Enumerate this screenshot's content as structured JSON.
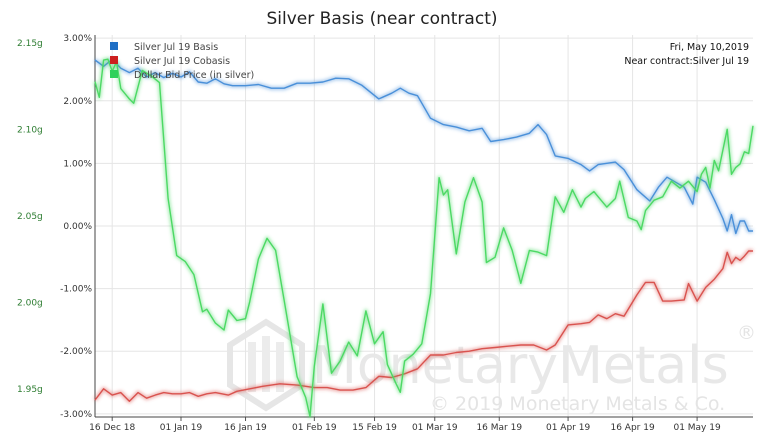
{
  "chart_data": {
    "type": "line",
    "title": "Silver Basis (near contract)",
    "x_ticks": [
      "16 Dec 18",
      "01 Jan 19",
      "16 Jan 19",
      "01 Feb 19",
      "15 Feb 19",
      "01 Mar 19",
      "16 Mar 19",
      "01 Apr 19",
      "16 Apr 19",
      "01 May 19"
    ],
    "x_range": [
      "2018-12-12",
      "2019-05-14"
    ],
    "y_right": {
      "ticks": [
        "3.00%",
        "2.00%",
        "1.00%",
        "0.00%",
        "-1.00%",
        "-2.00%",
        "-3.00%"
      ],
      "range": [
        -3.05,
        3.05
      ]
    },
    "y_left": {
      "ticks": [
        "2.15g",
        "2.10g",
        "2.05g",
        "2.00g",
        "1.95g"
      ],
      "range": [
        1.9337,
        2.1545
      ],
      "color": "#2e7d32"
    },
    "grid": true,
    "legend_position": "top-left",
    "info_lines": [
      "Fri, May 10,2019",
      "Near contract:Silver Jul 19"
    ],
    "watermark": {
      "logo_text": "MonetaryMetals",
      "registered_mark": "®",
      "copyright": "© 2019 Monetary Metals & Co."
    },
    "series": [
      {
        "name": "Silver Jul 19 Basis",
        "color": "#4a90d9",
        "axis": "right",
        "points": [
          [
            "2018-12-12",
            2.65
          ],
          [
            "2018-12-14",
            2.55
          ],
          [
            "2018-12-16",
            2.66
          ],
          [
            "2018-12-18",
            2.52
          ],
          [
            "2018-12-20",
            2.45
          ],
          [
            "2018-12-22",
            2.52
          ],
          [
            "2018-12-24",
            2.38
          ],
          [
            "2018-12-26",
            2.45
          ],
          [
            "2018-12-28",
            2.37
          ],
          [
            "2018-12-30",
            2.44
          ],
          [
            "2019-01-01",
            2.38
          ],
          [
            "2019-01-03",
            2.46
          ],
          [
            "2019-01-05",
            2.3
          ],
          [
            "2019-01-07",
            2.28
          ],
          [
            "2019-01-09",
            2.35
          ],
          [
            "2019-01-11",
            2.27
          ],
          [
            "2019-01-13",
            2.24
          ],
          [
            "2019-01-16",
            2.24
          ],
          [
            "2019-01-19",
            2.26
          ],
          [
            "2019-01-22",
            2.2
          ],
          [
            "2019-01-25",
            2.2
          ],
          [
            "2019-01-28",
            2.28
          ],
          [
            "2019-01-31",
            2.28
          ],
          [
            "2019-02-03",
            2.3
          ],
          [
            "2019-02-06",
            2.36
          ],
          [
            "2019-02-09",
            2.35
          ],
          [
            "2019-02-12",
            2.25
          ],
          [
            "2019-02-16",
            2.03
          ],
          [
            "2019-02-19",
            2.12
          ],
          [
            "2019-02-21",
            2.2
          ],
          [
            "2019-02-23",
            2.12
          ],
          [
            "2019-02-25",
            2.08
          ],
          [
            "2019-02-28",
            1.72
          ],
          [
            "2019-03-03",
            1.62
          ],
          [
            "2019-03-06",
            1.58
          ],
          [
            "2019-03-09",
            1.52
          ],
          [
            "2019-03-12",
            1.56
          ],
          [
            "2019-03-14",
            1.35
          ],
          [
            "2019-03-17",
            1.38
          ],
          [
            "2019-03-20",
            1.42
          ],
          [
            "2019-03-23",
            1.48
          ],
          [
            "2019-03-25",
            1.62
          ],
          [
            "2019-03-27",
            1.46
          ],
          [
            "2019-03-29",
            1.12
          ],
          [
            "2019-04-01",
            1.08
          ],
          [
            "2019-04-04",
            0.98
          ],
          [
            "2019-04-06",
            0.88
          ],
          [
            "2019-04-08",
            0.98
          ],
          [
            "2019-04-12",
            1.02
          ],
          [
            "2019-04-14",
            0.9
          ],
          [
            "2019-04-17",
            0.58
          ],
          [
            "2019-04-20",
            0.4
          ],
          [
            "2019-04-22",
            0.62
          ],
          [
            "2019-04-24",
            0.78
          ],
          [
            "2019-04-26",
            0.7
          ],
          [
            "2019-04-28",
            0.62
          ],
          [
            "2019-04-30",
            0.35
          ],
          [
            "2019-05-01",
            0.78
          ],
          [
            "2019-05-03",
            0.7
          ],
          [
            "2019-05-05",
            0.42
          ],
          [
            "2019-05-07",
            0.12
          ],
          [
            "2019-05-08",
            -0.08
          ],
          [
            "2019-05-09",
            0.18
          ],
          [
            "2019-05-10",
            -0.12
          ],
          [
            "2019-05-11",
            0.08
          ],
          [
            "2019-05-12",
            0.08
          ],
          [
            "2019-05-13",
            -0.08
          ],
          [
            "2019-05-14",
            -0.08
          ]
        ]
      },
      {
        "name": "Silver Jul 19 Cobasis",
        "color": "#d9534f",
        "axis": "right",
        "points": [
          [
            "2018-12-12",
            -2.78
          ],
          [
            "2018-12-14",
            -2.6
          ],
          [
            "2018-12-16",
            -2.7
          ],
          [
            "2018-12-18",
            -2.66
          ],
          [
            "2018-12-20",
            -2.8
          ],
          [
            "2018-12-22",
            -2.66
          ],
          [
            "2018-12-24",
            -2.75
          ],
          [
            "2018-12-26",
            -2.7
          ],
          [
            "2018-12-28",
            -2.66
          ],
          [
            "2018-12-30",
            -2.68
          ],
          [
            "2019-01-01",
            -2.68
          ],
          [
            "2019-01-03",
            -2.66
          ],
          [
            "2019-01-05",
            -2.72
          ],
          [
            "2019-01-07",
            -2.68
          ],
          [
            "2019-01-09",
            -2.66
          ],
          [
            "2019-01-12",
            -2.7
          ],
          [
            "2019-01-14",
            -2.64
          ],
          [
            "2019-01-17",
            -2.6
          ],
          [
            "2019-01-20",
            -2.56
          ],
          [
            "2019-01-24",
            -2.52
          ],
          [
            "2019-01-28",
            -2.54
          ],
          [
            "2019-02-01",
            -2.58
          ],
          [
            "2019-02-04",
            -2.58
          ],
          [
            "2019-02-07",
            -2.62
          ],
          [
            "2019-02-10",
            -2.62
          ],
          [
            "2019-02-13",
            -2.58
          ],
          [
            "2019-02-16",
            -2.4
          ],
          [
            "2019-02-19",
            -2.42
          ],
          [
            "2019-02-22",
            -2.36
          ],
          [
            "2019-02-25",
            -2.28
          ],
          [
            "2019-02-28",
            -2.06
          ],
          [
            "2019-03-03",
            -2.06
          ],
          [
            "2019-03-06",
            -2.02
          ],
          [
            "2019-03-09",
            -2.0
          ],
          [
            "2019-03-12",
            -1.96
          ],
          [
            "2019-03-15",
            -1.94
          ],
          [
            "2019-03-18",
            -1.92
          ],
          [
            "2019-03-21",
            -1.9
          ],
          [
            "2019-03-24",
            -1.9
          ],
          [
            "2019-03-27",
            -1.98
          ],
          [
            "2019-03-29",
            -1.9
          ],
          [
            "2019-04-01",
            -1.58
          ],
          [
            "2019-04-04",
            -1.56
          ],
          [
            "2019-04-06",
            -1.54
          ],
          [
            "2019-04-08",
            -1.42
          ],
          [
            "2019-04-10",
            -1.48
          ],
          [
            "2019-04-12",
            -1.4
          ],
          [
            "2019-04-14",
            -1.44
          ],
          [
            "2019-04-17",
            -1.1
          ],
          [
            "2019-04-19",
            -0.9
          ],
          [
            "2019-04-21",
            -0.9
          ],
          [
            "2019-04-23",
            -1.2
          ],
          [
            "2019-04-25",
            -1.2
          ],
          [
            "2019-04-28",
            -1.18
          ],
          [
            "2019-04-29",
            -0.92
          ],
          [
            "2019-05-01",
            -1.2
          ],
          [
            "2019-05-03",
            -0.98
          ],
          [
            "2019-05-05",
            -0.85
          ],
          [
            "2019-05-07",
            -0.68
          ],
          [
            "2019-05-08",
            -0.42
          ],
          [
            "2019-05-09",
            -0.6
          ],
          [
            "2019-05-10",
            -0.5
          ],
          [
            "2019-05-11",
            -0.55
          ],
          [
            "2019-05-12",
            -0.48
          ],
          [
            "2019-05-13",
            -0.4
          ],
          [
            "2019-05-14",
            -0.4
          ]
        ]
      },
      {
        "name": "Dollar Bid Price (in silver)",
        "color": "#4cd964",
        "axis": "left",
        "points": [
          [
            "2018-12-12",
            2.1275
          ],
          [
            "2018-12-13",
            2.1185
          ],
          [
            "2018-12-14",
            2.14
          ],
          [
            "2018-12-15",
            2.1405
          ],
          [
            "2018-12-16",
            2.1335
          ],
          [
            "2018-12-17",
            2.139
          ],
          [
            "2018-12-18",
            2.1235
          ],
          [
            "2018-12-20",
            2.1175
          ],
          [
            "2018-12-21",
            2.115
          ],
          [
            "2018-12-23",
            2.134
          ],
          [
            "2018-12-25",
            2.131
          ],
          [
            "2018-12-27",
            2.127
          ],
          [
            "2018-12-29",
            2.06
          ],
          [
            "2018-12-31",
            2.027
          ],
          [
            "2019-01-02",
            2.0235
          ],
          [
            "2019-01-04",
            2.016
          ],
          [
            "2019-01-06",
            1.9945
          ],
          [
            "2019-01-07",
            1.996
          ],
          [
            "2019-01-09",
            1.988
          ],
          [
            "2019-01-11",
            1.984
          ],
          [
            "2019-01-12",
            1.9955
          ],
          [
            "2019-01-14",
            1.9895
          ],
          [
            "2019-01-16",
            1.9905
          ],
          [
            "2019-01-17",
            2.0005
          ],
          [
            "2019-01-19",
            2.025
          ],
          [
            "2019-01-21",
            2.037
          ],
          [
            "2019-01-23",
            2.03
          ],
          [
            "2019-01-25",
            2.001
          ],
          [
            "2019-01-28",
            1.957
          ],
          [
            "2019-01-30",
            1.945
          ],
          [
            "2019-01-31",
            1.934
          ],
          [
            "2019-02-01",
            1.963
          ],
          [
            "2019-02-03",
            1.999
          ],
          [
            "2019-02-05",
            1.959
          ],
          [
            "2019-02-07",
            1.966
          ],
          [
            "2019-02-09",
            1.977
          ],
          [
            "2019-02-11",
            1.969
          ],
          [
            "2019-02-13",
            1.995
          ],
          [
            "2019-02-15",
            1.976
          ],
          [
            "2019-02-17",
            1.983
          ],
          [
            "2019-02-18",
            1.964
          ],
          [
            "2019-02-20",
            1.953
          ],
          [
            "2019-02-21",
            1.948
          ],
          [
            "2019-02-22",
            1.966
          ],
          [
            "2019-02-24",
            1.97
          ],
          [
            "2019-02-26",
            1.976
          ],
          [
            "2019-02-28",
            2.005
          ],
          [
            "2019-03-02",
            2.072
          ],
          [
            "2019-03-03",
            2.062
          ],
          [
            "2019-03-04",
            2.065
          ],
          [
            "2019-03-06",
            2.028
          ],
          [
            "2019-03-08",
            2.058
          ],
          [
            "2019-03-10",
            2.072
          ],
          [
            "2019-03-12",
            2.058
          ],
          [
            "2019-03-13",
            2.023
          ],
          [
            "2019-03-15",
            2.026
          ],
          [
            "2019-03-17",
            2.043
          ],
          [
            "2019-03-19",
            2.03
          ],
          [
            "2019-03-21",
            2.011
          ],
          [
            "2019-03-23",
            2.03
          ],
          [
            "2019-03-25",
            2.029
          ],
          [
            "2019-03-27",
            2.027
          ],
          [
            "2019-03-29",
            2.061
          ],
          [
            "2019-03-31",
            2.052
          ],
          [
            "2019-04-02",
            2.065
          ],
          [
            "2019-04-04",
            2.055
          ],
          [
            "2019-04-05",
            2.06
          ],
          [
            "2019-04-07",
            2.064
          ],
          [
            "2019-04-08",
            2.061
          ],
          [
            "2019-04-10",
            2.055
          ],
          [
            "2019-04-12",
            2.06
          ],
          [
            "2019-04-13",
            2.07
          ],
          [
            "2019-04-15",
            2.049
          ],
          [
            "2019-04-17",
            2.047
          ],
          [
            "2019-04-18",
            2.042
          ],
          [
            "2019-04-19",
            2.053
          ],
          [
            "2019-04-21",
            2.059
          ],
          [
            "2019-04-23",
            2.061
          ],
          [
            "2019-04-25",
            2.07
          ],
          [
            "2019-04-27",
            2.066
          ],
          [
            "2019-04-29",
            2.07
          ],
          [
            "2019-05-01",
            2.064
          ],
          [
            "2019-05-02",
            2.074
          ],
          [
            "2019-05-03",
            2.078
          ],
          [
            "2019-05-04",
            2.066
          ],
          [
            "2019-05-05",
            2.082
          ],
          [
            "2019-05-06",
            2.076
          ],
          [
            "2019-05-07",
            2.088
          ],
          [
            "2019-05-08",
            2.1
          ],
          [
            "2019-05-09",
            2.074
          ],
          [
            "2019-05-10",
            2.078
          ],
          [
            "2019-05-11",
            2.08
          ],
          [
            "2019-05-12",
            2.087
          ],
          [
            "2019-05-13",
            2.086
          ],
          [
            "2019-05-14",
            2.102
          ]
        ]
      }
    ]
  }
}
